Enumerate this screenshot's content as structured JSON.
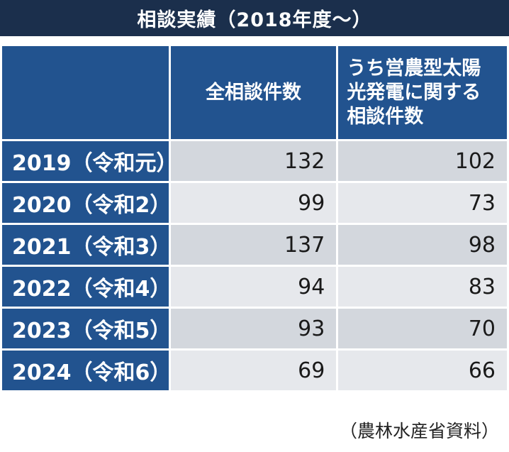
{
  "title": "相談実績（2018年度～）",
  "source": "（農林水産省資料）",
  "table": {
    "header": {
      "year": "",
      "all": "全相談件数",
      "solar_lines": [
        "うち営農型太陽",
        "光発電に関する",
        "相談件数"
      ]
    },
    "rows": [
      {
        "year": "2019（令和元）",
        "all": "132",
        "solar": "102"
      },
      {
        "year": "2020（令和2）",
        "all": "99",
        "solar": "73"
      },
      {
        "year": "2021（令和3）",
        "all": "137",
        "solar": "98"
      },
      {
        "year": "2022（令和4）",
        "all": "94",
        "solar": "83"
      },
      {
        "year": "2023（令和5）",
        "all": "93",
        "solar": "70"
      },
      {
        "year": "2024（令和6）",
        "all": "69",
        "solar": "66"
      }
    ]
  },
  "chart_data": {
    "type": "table",
    "title": "相談実績（2018年度～）",
    "columns": [
      "",
      "全相談件数",
      "うち営農型太陽光発電に関する相談件数"
    ],
    "categories": [
      "2019（令和元）",
      "2020（令和2）",
      "2021（令和3）",
      "2022（令和4）",
      "2023（令和5）",
      "2024（令和6）"
    ],
    "series": [
      {
        "name": "全相談件数",
        "values": [
          132,
          99,
          137,
          94,
          93,
          69
        ]
      },
      {
        "name": "うち営農型太陽光発電に関する相談件数",
        "values": [
          102,
          73,
          98,
          83,
          70,
          66
        ]
      }
    ],
    "source": "（農林水産省資料）",
    "colors": {
      "title_bg": "#1b2f4c",
      "header_bg": "#22538f",
      "cell_dark": "#d3d7dd",
      "cell_light": "#e6e8ec"
    }
  }
}
